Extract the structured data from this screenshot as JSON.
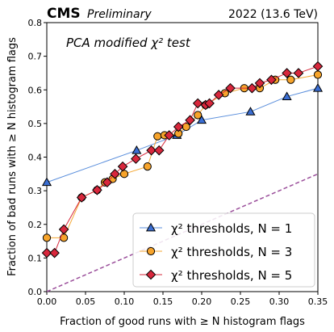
{
  "header": {
    "experiment": "CMS",
    "status": "Preliminary",
    "run_info": "2022 (13.6 TeV)"
  },
  "chart_data": {
    "type": "line",
    "annotation": "PCA modified χ² test",
    "xlabel": "Fraction of good runs with ≥ N histogram flags",
    "ylabel": "Fraction of bad runs with ≥ N histogram flags",
    "xlim": [
      0,
      0.35
    ],
    "ylim": [
      0,
      0.8
    ],
    "xticks": [
      "0.00",
      "0.05",
      "0.10",
      "0.15",
      "0.20",
      "0.25",
      "0.30",
      "0.35"
    ],
    "yticks": [
      "0.0",
      "0.1",
      "0.2",
      "0.3",
      "0.4",
      "0.5",
      "0.6",
      "0.7",
      "0.8"
    ],
    "grid": false,
    "legend_position": "bottom-right",
    "reference_line": {
      "style": "dashed",
      "color": "#9b4f9b",
      "points": [
        [
          0,
          0
        ],
        [
          0.35,
          0.35
        ]
      ]
    },
    "series": [
      {
        "name": "χ² thresholds, N = 1",
        "marker": "triangle",
        "line_color": "#5b8fdc",
        "marker_color": "#3b6fd4",
        "points": [
          [
            0.0,
            0.325
          ],
          [
            0.116,
            0.42
          ],
          [
            0.168,
            0.465
          ],
          [
            0.2,
            0.51
          ],
          [
            0.263,
            0.535
          ],
          [
            0.31,
            0.58
          ],
          [
            0.35,
            0.605
          ]
        ]
      },
      {
        "name": "χ² thresholds, N = 3",
        "marker": "circle",
        "line_color": "#f4a733",
        "marker_color": "#f7a42b",
        "points": [
          [
            0.0,
            0.16
          ],
          [
            0.022,
            0.16
          ],
          [
            0.045,
            0.28
          ],
          [
            0.065,
            0.302
          ],
          [
            0.075,
            0.325
          ],
          [
            0.085,
            0.335
          ],
          [
            0.1,
            0.35
          ],
          [
            0.13,
            0.372
          ],
          [
            0.143,
            0.462
          ],
          [
            0.152,
            0.465
          ],
          [
            0.17,
            0.47
          ],
          [
            0.18,
            0.49
          ],
          [
            0.195,
            0.525
          ],
          [
            0.205,
            0.555
          ],
          [
            0.23,
            0.59
          ],
          [
            0.255,
            0.605
          ],
          [
            0.275,
            0.605
          ],
          [
            0.295,
            0.63
          ],
          [
            0.315,
            0.63
          ],
          [
            0.35,
            0.645
          ]
        ]
      },
      {
        "name": "χ² thresholds, N = 5",
        "marker": "diamond",
        "line_color": "#d6273a",
        "marker_color": "#d8273c",
        "points": [
          [
            0.0,
            0.115
          ],
          [
            0.01,
            0.115
          ],
          [
            0.022,
            0.185
          ],
          [
            0.045,
            0.28
          ],
          [
            0.065,
            0.302
          ],
          [
            0.078,
            0.325
          ],
          [
            0.088,
            0.35
          ],
          [
            0.098,
            0.372
          ],
          [
            0.115,
            0.395
          ],
          [
            0.135,
            0.42
          ],
          [
            0.145,
            0.42
          ],
          [
            0.158,
            0.465
          ],
          [
            0.17,
            0.49
          ],
          [
            0.185,
            0.51
          ],
          [
            0.195,
            0.56
          ],
          [
            0.205,
            0.555
          ],
          [
            0.21,
            0.56
          ],
          [
            0.222,
            0.585
          ],
          [
            0.237,
            0.605
          ],
          [
            0.265,
            0.605
          ],
          [
            0.275,
            0.62
          ],
          [
            0.29,
            0.63
          ],
          [
            0.31,
            0.65
          ],
          [
            0.325,
            0.65
          ],
          [
            0.35,
            0.67
          ]
        ]
      }
    ]
  }
}
